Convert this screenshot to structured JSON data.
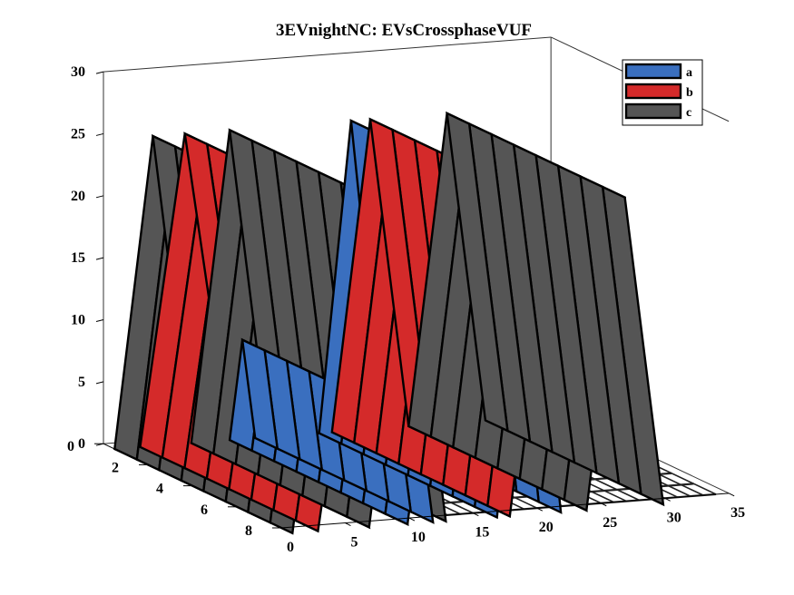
{
  "chart_data": {
    "type": "bar3",
    "title": "3EVnightNC: EVsCrossphaseVUF",
    "xlabel": "",
    "ylabel": "",
    "zlabel": "",
    "x_ticks": [
      "0",
      "5",
      "10",
      "15",
      "20",
      "25",
      "30",
      "35"
    ],
    "y_ticks": [
      "0",
      "2",
      "4",
      "6",
      "8"
    ],
    "z_ticks": [
      "0",
      "5",
      "10",
      "15",
      "20",
      "25",
      "30"
    ],
    "xlim": [
      0,
      35
    ],
    "ylim": [
      0,
      8
    ],
    "zlim": [
      0,
      30
    ],
    "rows": 8,
    "legend_position": "top-right",
    "series": [
      {
        "name": "a",
        "color": "#3a6fbf",
        "pulses": [
          {
            "start": 9,
            "end": 11,
            "height": 8
          },
          {
            "start": 16,
            "end": 21,
            "height": 25
          }
        ]
      },
      {
        "name": "b",
        "color": "#d42a2a",
        "pulses": [
          {
            "start": 2,
            "end": 9,
            "height": 25
          },
          {
            "start": 17,
            "end": 23,
            "height": 25
          }
        ]
      },
      {
        "name": "c",
        "color": "#555555",
        "pulses": [
          {
            "start": 0,
            "end": 6,
            "height": 25
          },
          {
            "start": 6,
            "end": 12,
            "height": 25
          },
          {
            "start": 23,
            "end": 29,
            "height": 25
          }
        ]
      }
    ]
  }
}
